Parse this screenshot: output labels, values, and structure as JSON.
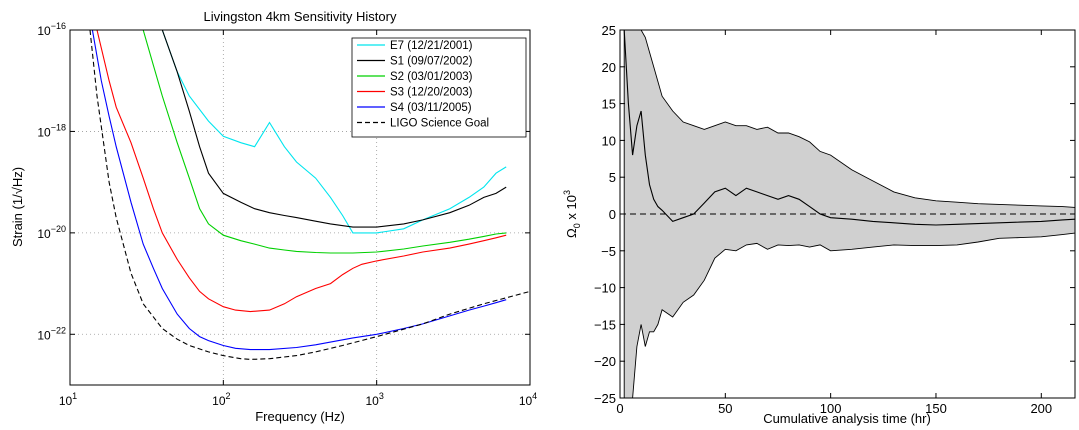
{
  "chart_data": [
    {
      "type": "line",
      "title": "Livingston 4km Sensitivity History",
      "xlabel": "Frequency (Hz)",
      "ylabel": "Strain (1/√Hz)",
      "xscale": "log",
      "yscale": "log",
      "xlim": [
        10,
        10000
      ],
      "ylim": [
        1e-23,
        1e-16
      ],
      "grid": true,
      "legend_position": "top-right",
      "x_ticks": [
        {
          "value": 10,
          "base": "10",
          "exp": "1"
        },
        {
          "value": 100,
          "base": "10",
          "exp": "2"
        },
        {
          "value": 1000,
          "base": "10",
          "exp": "3"
        },
        {
          "value": 10000,
          "base": "10",
          "exp": "4"
        }
      ],
      "y_ticks": [
        {
          "value": 1e-16,
          "base": "10",
          "exp": "−16"
        },
        {
          "value": 1e-18,
          "base": "10",
          "exp": "−18"
        },
        {
          "value": 1e-20,
          "base": "10",
          "exp": "−20"
        },
        {
          "value": 1e-22,
          "base": "10",
          "exp": "−22"
        }
      ],
      "series": [
        {
          "name": "E7 (12/21/2001)",
          "color": "#00e5ee",
          "style": "solid",
          "x": [
            30,
            40,
            50,
            60,
            80,
            100,
            130,
            160,
            200,
            250,
            300,
            400,
            500,
            600,
            700,
            800,
            1000,
            1500,
            2000,
            3000,
            4000,
            5000,
            6000,
            7000
          ],
          "y": [
            1e-16,
            1e-16,
            1.5e-17,
            5e-18,
            1.6e-18,
            8e-19,
            6e-19,
            5e-19,
            1.5e-18,
            5e-19,
            2.5e-19,
            1.2e-19,
            5e-20,
            2.2e-20,
            1e-20,
            1e-20,
            1e-20,
            1.2e-20,
            1.8e-20,
            3e-20,
            5e-20,
            8e-20,
            1.5e-19,
            2e-19
          ]
        },
        {
          "name": "S1 (09/07/2002)",
          "color": "#000000",
          "style": "solid",
          "x": [
            40,
            50,
            60,
            70,
            80,
            100,
            130,
            160,
            200,
            250,
            300,
            400,
            500,
            700,
            1000,
            1500,
            2000,
            3000,
            4000,
            5000,
            6000,
            7000
          ],
          "y": [
            1e-16,
            1.5e-17,
            2.5e-18,
            5e-19,
            1.5e-19,
            6e-20,
            4e-20,
            3e-20,
            2.5e-20,
            2.2e-20,
            2e-20,
            1.7e-20,
            1.5e-20,
            1.3e-20,
            1.3e-20,
            1.5e-20,
            1.8e-20,
            2.5e-20,
            3.5e-20,
            5e-20,
            6e-20,
            8e-20
          ]
        },
        {
          "name": "S2 (03/01/2003)",
          "color": "#00d000",
          "style": "solid",
          "x": [
            30,
            35,
            40,
            50,
            60,
            70,
            80,
            100,
            130,
            160,
            200,
            250,
            300,
            400,
            500,
            700,
            1000,
            1500,
            2000,
            3000,
            4000,
            5000,
            6000,
            7000
          ],
          "y": [
            1e-16,
            2e-17,
            5e-18,
            6e-19,
            1.2e-19,
            3e-20,
            1.5e-20,
            9e-21,
            7e-21,
            6e-21,
            5e-21,
            4.6e-21,
            4.3e-21,
            4.1e-21,
            4e-21,
            4e-21,
            4.2e-21,
            4.8e-21,
            5.5e-21,
            6.5e-21,
            7.5e-21,
            8.5e-21,
            9.5e-21,
            1e-20
          ]
        },
        {
          "name": "S3 (12/20/2003)",
          "color": "#ff0000",
          "style": "solid",
          "x": [
            15,
            18,
            20,
            25,
            30,
            35,
            40,
            50,
            60,
            70,
            80,
            100,
            120,
            150,
            200,
            250,
            300,
            400,
            500,
            600,
            700,
            800,
            1000,
            1500,
            2000,
            3000,
            4000,
            5000,
            6000,
            7000
          ],
          "y": [
            1e-16,
            1e-17,
            3e-18,
            6e-19,
            1.2e-19,
            3e-20,
            1e-20,
            3e-21,
            1.3e-21,
            7e-22,
            5e-22,
            3.5e-22,
            3e-22,
            2.8e-22,
            3e-22,
            4e-22,
            5.5e-22,
            8e-22,
            1e-21,
            1.5e-21,
            2e-21,
            2.4e-21,
            2.8e-21,
            3.5e-21,
            4.2e-21,
            5e-21,
            6e-21,
            7e-21,
            8e-21,
            9e-21
          ]
        },
        {
          "name": "S4 (03/11/2005)",
          "color": "#0000ff",
          "style": "solid",
          "x": [
            14,
            16,
            18,
            20,
            25,
            30,
            35,
            40,
            50,
            60,
            70,
            80,
            100,
            120,
            150,
            200,
            300,
            400,
            500,
            700,
            1000,
            1500,
            2000,
            3000,
            4000,
            5000,
            6000,
            7000
          ],
          "y": [
            1e-16,
            1e-17,
            2e-18,
            5e-19,
            4e-20,
            6e-21,
            2e-21,
            8e-22,
            2.5e-22,
            1.3e-22,
            9e-23,
            7.5e-23,
            6e-23,
            5.3e-23,
            5e-23,
            5e-23,
            5.5e-23,
            6.2e-23,
            7e-23,
            8.5e-23,
            1e-22,
            1.3e-22,
            1.6e-22,
            2.3e-22,
            3e-22,
            3.6e-22,
            4.2e-22,
            4.8e-22
          ]
        },
        {
          "name": "LIGO Science Goal",
          "color": "#000000",
          "style": "dashed",
          "x": [
            13.5,
            15,
            18,
            20,
            25,
            30,
            40,
            50,
            60,
            80,
            100,
            130,
            150,
            200,
            300,
            400,
            600,
            1000,
            2000,
            3000,
            5000,
            10000
          ],
          "y": [
            1e-16,
            5e-18,
            1e-19,
            2e-20,
            1.6e-21,
            4e-22,
            1.3e-22,
            8e-23,
            6e-23,
            4.5e-23,
            3.8e-23,
            3.3e-23,
            3.2e-23,
            3.3e-23,
            3.8e-23,
            4.5e-23,
            6e-23,
            9e-23,
            1.6e-22,
            2.5e-22,
            4e-22,
            7e-22
          ]
        }
      ]
    },
    {
      "type": "area",
      "title": "",
      "xlabel": "Cumulative analysis time (hr)",
      "ylabel": {
        "main": "Ω",
        "sub": "0",
        "mid": " x 10",
        "sup": "3"
      },
      "xlim": [
        0,
        216
      ],
      "ylim": [
        -25,
        25
      ],
      "grid": false,
      "x_ticks": [
        0,
        50,
        100,
        150,
        200
      ],
      "y_ticks": [
        25,
        20,
        15,
        10,
        5,
        0,
        -5,
        -10,
        -15,
        -20,
        -25
      ],
      "reference_line": {
        "y": 0,
        "style": "dashed"
      },
      "band_color": "#d0d0d0",
      "x": [
        2,
        4,
        6,
        8,
        10,
        12,
        14,
        16,
        18,
        20,
        25,
        30,
        35,
        40,
        45,
        50,
        55,
        60,
        65,
        70,
        75,
        80,
        85,
        90,
        95,
        100,
        110,
        120,
        130,
        140,
        150,
        160,
        170,
        180,
        190,
        200,
        210,
        216
      ],
      "upper": [
        25,
        25,
        25,
        25,
        25,
        24,
        22,
        20,
        18,
        16,
        14,
        12.5,
        12,
        11.5,
        12,
        12.5,
        12,
        12,
        11.5,
        11.8,
        11,
        11,
        10.5,
        9.8,
        8.5,
        8,
        6,
        4.5,
        3,
        2.2,
        1.8,
        1.6,
        1.4,
        1.3,
        1.2,
        1.1,
        1.0,
        0.9
      ],
      "center": [
        25,
        15,
        8,
        12,
        14,
        8,
        4,
        2,
        1,
        0.5,
        -1,
        -0.5,
        0,
        1.5,
        3,
        3.5,
        2.5,
        3.5,
        3,
        2.5,
        2,
        2.5,
        2,
        1,
        0,
        -0.5,
        -0.7,
        -1,
        -1.2,
        -1.4,
        -1.5,
        -1.4,
        -1.3,
        -1.2,
        -1.1,
        -1.0,
        -0.8,
        -0.7
      ],
      "lower": [
        -25,
        -25,
        -25,
        -18,
        -15,
        -18,
        -16,
        -16,
        -15,
        -13,
        -14,
        -12,
        -11,
        -9,
        -6,
        -4.8,
        -5,
        -4.2,
        -4,
        -4.8,
        -4.2,
        -4.3,
        -4.2,
        -4.5,
        -4.2,
        -5,
        -4.8,
        -4.5,
        -4.2,
        -4.3,
        -4.3,
        -4.2,
        -3.8,
        -3.3,
        -3.2,
        -3.1,
        -2.8,
        -2.6
      ]
    }
  ]
}
